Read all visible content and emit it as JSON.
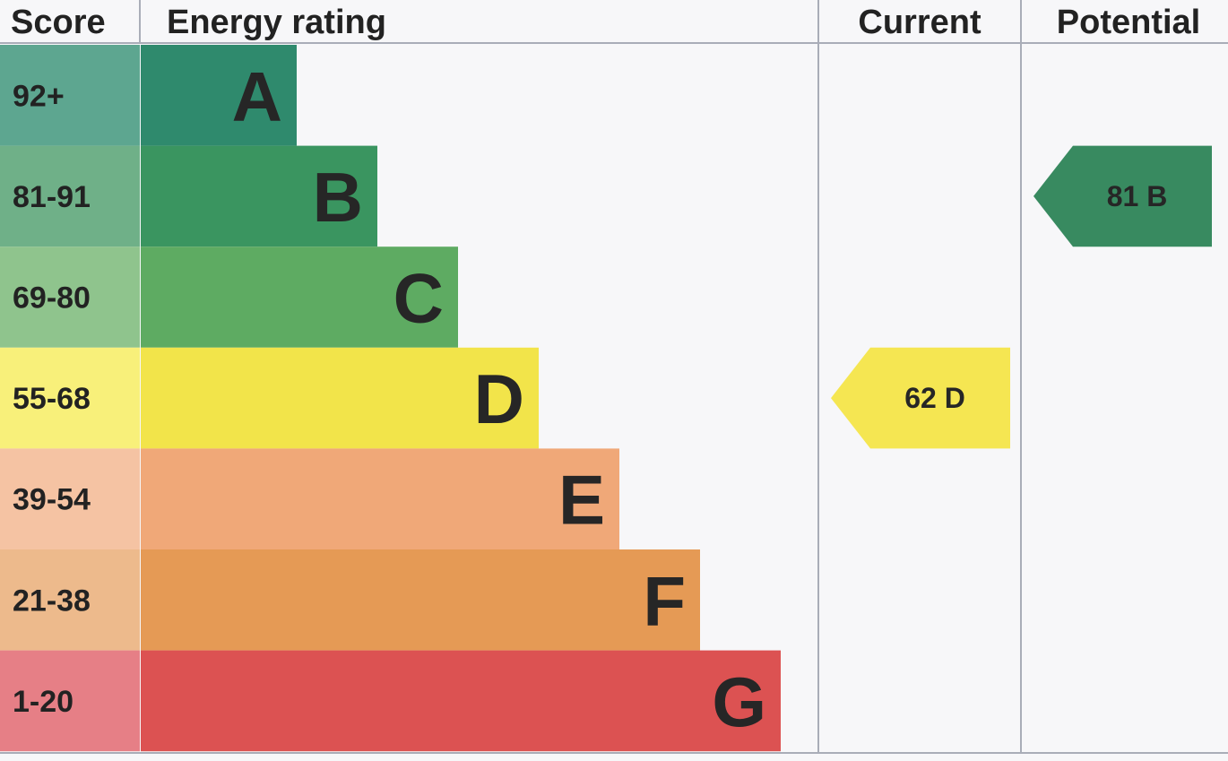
{
  "headers": {
    "score": "Score",
    "energy_rating": "Energy rating",
    "current": "Current",
    "potential": "Potential"
  },
  "chart_data": {
    "type": "bar",
    "categories": [
      "A",
      "B",
      "C",
      "D",
      "E",
      "F",
      "G"
    ],
    "score_ranges": [
      "92+",
      "81-91",
      "69-80",
      "55-68",
      "39-54",
      "21-38",
      "1-20"
    ],
    "colors": [
      "#2f8a6d",
      "#3a9560",
      "#5eab62",
      "#f2e44a",
      "#f0a878",
      "#e59a55",
      "#dc5252"
    ],
    "score_tints": [
      "#5da690",
      "#6fb088",
      "#8fc48d",
      "#f8f07a",
      "#f5c3a3",
      "#edba8c",
      "#e67f86"
    ],
    "current": {
      "value": 62,
      "band": "D",
      "color": "#f5e652"
    },
    "potential": {
      "value": 81,
      "band": "B",
      "color": "#388a60"
    }
  }
}
